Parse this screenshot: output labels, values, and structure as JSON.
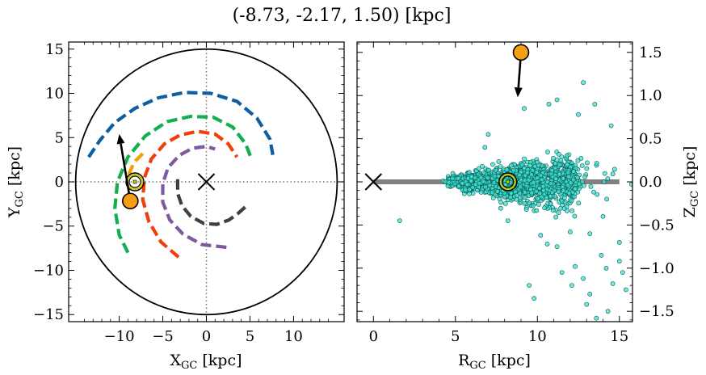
{
  "figure": {
    "title": "(-8.73, -2.17, 1.50) [kpc]"
  },
  "colors": {
    "spiral_blue": "#0f5fa0",
    "spiral_green": "#10b050",
    "spiral_red": "#f0400a",
    "spiral_purple": "#7d5aa0",
    "spiral_dark": "#404040",
    "spiral_orange": "#f5a000",
    "star_marker": "#f5a014",
    "scatter_fill": "#40e0d0",
    "sun_ring": "#c8c800",
    "disk_line": "#808080"
  },
  "chart_data": [
    {
      "type": "line",
      "panel": "left",
      "xlabel": "X",
      "xlabel_sub": "GC",
      "xlabel_unit": "[kpc]",
      "ylabel": "Y",
      "ylabel_sub": "GC",
      "ylabel_unit": "[kpc]",
      "xlim": [
        -15.8,
        15.8
      ],
      "ylim": [
        -15.8,
        15.8
      ],
      "xticks": [
        -10,
        -5,
        0,
        5,
        10
      ],
      "xtick_labels": [
        "−10",
        "−5",
        "0",
        "5",
        "10"
      ],
      "yticks": [
        -15,
        -10,
        -5,
        0,
        5,
        10,
        15
      ],
      "ytick_labels": [
        "−15",
        "−10",
        "−5",
        "0",
        "5",
        "10",
        "15"
      ],
      "grid": false,
      "boundary_circle_radius": 15,
      "galactic_center": [
        0,
        0
      ],
      "sun_position": [
        -8.2,
        0
      ],
      "object_position": [
        -8.73,
        -2.17
      ],
      "velocity_arrow_tip": [
        -10,
        5.4
      ],
      "series": [
        {
          "color_key": "spiral_blue",
          "points": [
            [
              -13.5,
              2.8
            ],
            [
              -12.2,
              4.7
            ],
            [
              -10.5,
              6.7
            ],
            [
              -8.2,
              8.3
            ],
            [
              -5.5,
              9.5
            ],
            [
              -2.5,
              10.1
            ],
            [
              0.5,
              10
            ],
            [
              3.5,
              9.1
            ],
            [
              5.8,
              7.2
            ],
            [
              7.3,
              4.8
            ],
            [
              7.7,
              2.6
            ]
          ]
        },
        {
          "color_key": "spiral_green",
          "points": [
            [
              -9,
              -8
            ],
            [
              -10,
              -6
            ],
            [
              -10.5,
              -3
            ],
            [
              -10.2,
              0
            ],
            [
              -9,
              2.8
            ],
            [
              -7,
              5.2
            ],
            [
              -4.5,
              6.8
            ],
            [
              -1.8,
              7.4
            ],
            [
              0.8,
              7.3
            ],
            [
              3,
              6.2
            ],
            [
              4.5,
              4.3
            ],
            [
              5.2,
              2.5
            ]
          ]
        },
        {
          "color_key": "spiral_red",
          "points": [
            [
              -3.2,
              -8.5
            ],
            [
              -5.2,
              -6.8
            ],
            [
              -6.6,
              -4.5
            ],
            [
              -7.3,
              -2
            ],
            [
              -7.1,
              0.5
            ],
            [
              -6.3,
              2.6
            ],
            [
              -4.8,
              4.3
            ],
            [
              -3,
              5.3
            ],
            [
              -1,
              5.7
            ],
            [
              1,
              5.4
            ],
            [
              2.5,
              4.3
            ],
            [
              3.5,
              2.8
            ]
          ]
        },
        {
          "color_key": "spiral_purple",
          "points": [
            [
              2.3,
              -7.4
            ],
            [
              -0.5,
              -7.1
            ],
            [
              -2.7,
              -5.9
            ],
            [
              -4.2,
              -4.3
            ],
            [
              -5,
              -2.3
            ],
            [
              -5,
              -0.2
            ],
            [
              -4.4,
              1.6
            ],
            [
              -3.1,
              3
            ],
            [
              -1.6,
              3.8
            ],
            [
              0,
              4
            ],
            [
              1,
              3.7
            ]
          ]
        },
        {
          "color_key": "spiral_dark",
          "points": [
            [
              -3.3,
              0.3
            ],
            [
              -3.3,
              -1.3
            ],
            [
              -2.8,
              -2.7
            ],
            [
              -1.8,
              -3.9
            ],
            [
              -0.3,
              -4.7
            ],
            [
              1.2,
              -4.8
            ],
            [
              2.6,
              -4.3
            ],
            [
              3.6,
              -3.6
            ],
            [
              4.5,
              -2.8
            ]
          ]
        },
        {
          "color_key": "spiral_orange",
          "points": [
            [
              -7.3,
              3.2
            ],
            [
              -8.3,
              2.2
            ],
            [
              -9.1,
              0.4
            ]
          ]
        }
      ]
    },
    {
      "type": "scatter",
      "panel": "right",
      "xlabel": "R",
      "xlabel_sub": "GC",
      "xlabel_unit": "[kpc]",
      "ylabel": "Z",
      "ylabel_sub": "GC",
      "ylabel_unit": "[kpc]",
      "xlim": [
        -1,
        15.8
      ],
      "ylim": [
        -1.62,
        1.62
      ],
      "xticks": [
        0,
        5,
        10,
        15
      ],
      "xtick_labels": [
        "0",
        "5",
        "10",
        "15"
      ],
      "yticks": [
        -1.5,
        -1.0,
        -0.5,
        0.0,
        0.5,
        1.0,
        1.5
      ],
      "ytick_labels": [
        "−1.5",
        "−1.0",
        "−0.5",
        "0.0",
        "0.5",
        "1.0",
        "1.5"
      ],
      "grid": false,
      "disk_line": {
        "x": [
          0,
          15
        ],
        "y": 0
      },
      "galactic_center": [
        0,
        0
      ],
      "sun_position": [
        8.2,
        0
      ],
      "object_position": [
        9.0,
        1.5
      ],
      "velocity_arrow_tip": [
        8.8,
        0.98
      ],
      "outliers": [
        [
          1.6,
          -0.45
        ],
        [
          9.5,
          -1.2
        ],
        [
          9.8,
          -1.35
        ],
        [
          11.5,
          -1.05
        ],
        [
          12.3,
          -0.98
        ],
        [
          12.8,
          -1.12
        ],
        [
          13.2,
          -1.3
        ],
        [
          13.6,
          -1.58
        ],
        [
          13.9,
          -0.85
        ],
        [
          14.2,
          -1.0
        ],
        [
          14.6,
          -1.18
        ],
        [
          15.0,
          -0.92
        ],
        [
          15.2,
          -1.05
        ],
        [
          15.4,
          -1.25
        ],
        [
          15.0,
          -0.7
        ],
        [
          14.3,
          -1.5
        ],
        [
          13.0,
          -1.42
        ],
        [
          12.1,
          -1.2
        ],
        [
          11.2,
          -0.75
        ],
        [
          10.6,
          -0.72
        ],
        [
          12.8,
          1.15
        ],
        [
          11.2,
          0.95
        ],
        [
          9.2,
          0.85
        ],
        [
          10.7,
          0.9
        ],
        [
          7.0,
          0.55
        ],
        [
          6.8,
          0.4
        ],
        [
          13.5,
          0.9
        ],
        [
          12.5,
          0.78
        ],
        [
          14.5,
          0.65
        ],
        [
          13.2,
          -0.6
        ],
        [
          12.0,
          -0.58
        ],
        [
          8.2,
          -0.45
        ],
        [
          10.2,
          -0.62
        ],
        [
          14.0,
          -0.4
        ]
      ],
      "cloud": {
        "seed": 7,
        "count": 1400,
        "r_core": [
          4.5,
          13
        ],
        "r_sigma": 1.6,
        "z_base": 0.06,
        "z_growth": 0.03
      }
    }
  ],
  "labels": {
    "gc_marker": "×"
  }
}
